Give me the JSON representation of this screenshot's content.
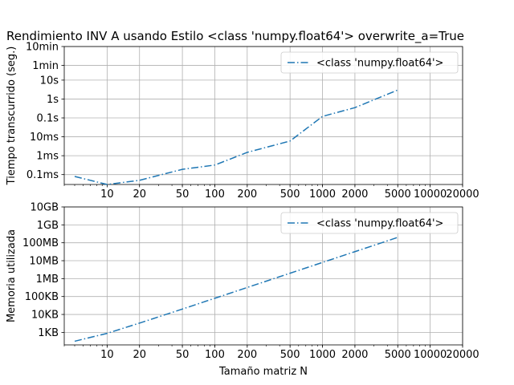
{
  "chart_data": [
    {
      "type": "line",
      "title": "Rendimiento  INV A usando Estilo <class 'numpy.float64'> overwrite_a=True",
      "xlabel": "",
      "ylabel": "Tiempo transcurrido (seg.)",
      "xscale": "log",
      "yscale": "log",
      "xlim": [
        4,
        20000
      ],
      "ylim": [
        3e-05,
        600
      ],
      "xticks": [
        10,
        20,
        50,
        100,
        200,
        500,
        1000,
        2000,
        5000,
        10000,
        20000
      ],
      "xtick_labels": [
        "10",
        "20",
        "50",
        "100",
        "200",
        "500",
        "1000",
        "2000",
        "5000",
        "10000",
        "20000"
      ],
      "yticks": [
        0.0001,
        0.001,
        0.01,
        0.1,
        1,
        10,
        60,
        600
      ],
      "ytick_labels": [
        "0.1ms",
        "1ms",
        "10ms",
        "0.1s",
        "1s",
        "10s",
        "1min",
        "10min"
      ],
      "grid": true,
      "legend_position": "upper-right",
      "series": [
        {
          "name": "<class 'numpy.float64'>",
          "color": "#1f77b4",
          "linestyle": "dashdot",
          "x": [
            5,
            10,
            20,
            50,
            100,
            200,
            500,
            1000,
            2000,
            5000
          ],
          "y": [
            8e-05,
            3e-05,
            5e-05,
            0.00019,
            0.00032,
            0.0015,
            0.006,
            0.12,
            0.35,
            3.0
          ]
        }
      ]
    },
    {
      "type": "line",
      "title": "",
      "xlabel": "Tamaño matriz N",
      "ylabel": "Memoria utilizada",
      "xscale": "log",
      "yscale": "log",
      "xlim": [
        4,
        20000
      ],
      "ylim": [
        200,
        10000000000
      ],
      "xticks": [
        10,
        20,
        50,
        100,
        200,
        500,
        1000,
        2000,
        5000,
        10000,
        20000
      ],
      "xtick_labels": [
        "10",
        "20",
        "50",
        "100",
        "200",
        "500",
        "1000",
        "2000",
        "5000",
        "10000",
        "20000"
      ],
      "yticks": [
        1000,
        10000,
        100000,
        1000000,
        10000000,
        100000000,
        1000000000,
        10000000000
      ],
      "ytick_labels": [
        "1KB",
        "10KB",
        "100KB",
        "1MB",
        "10MB",
        "100MB",
        "1GB",
        "10GB"
      ],
      "grid": true,
      "legend_position": "upper-right",
      "series": [
        {
          "name": "<class 'numpy.float64'>",
          "color": "#1f77b4",
          "linestyle": "dashdot",
          "x": [
            5,
            10,
            20,
            50,
            100,
            200,
            500,
            1000,
            2000,
            5000
          ],
          "y": [
            320,
            880,
            3300,
            20000,
            80000,
            320000,
            2000000,
            8000000,
            32000000,
            200000000
          ]
        }
      ]
    }
  ]
}
